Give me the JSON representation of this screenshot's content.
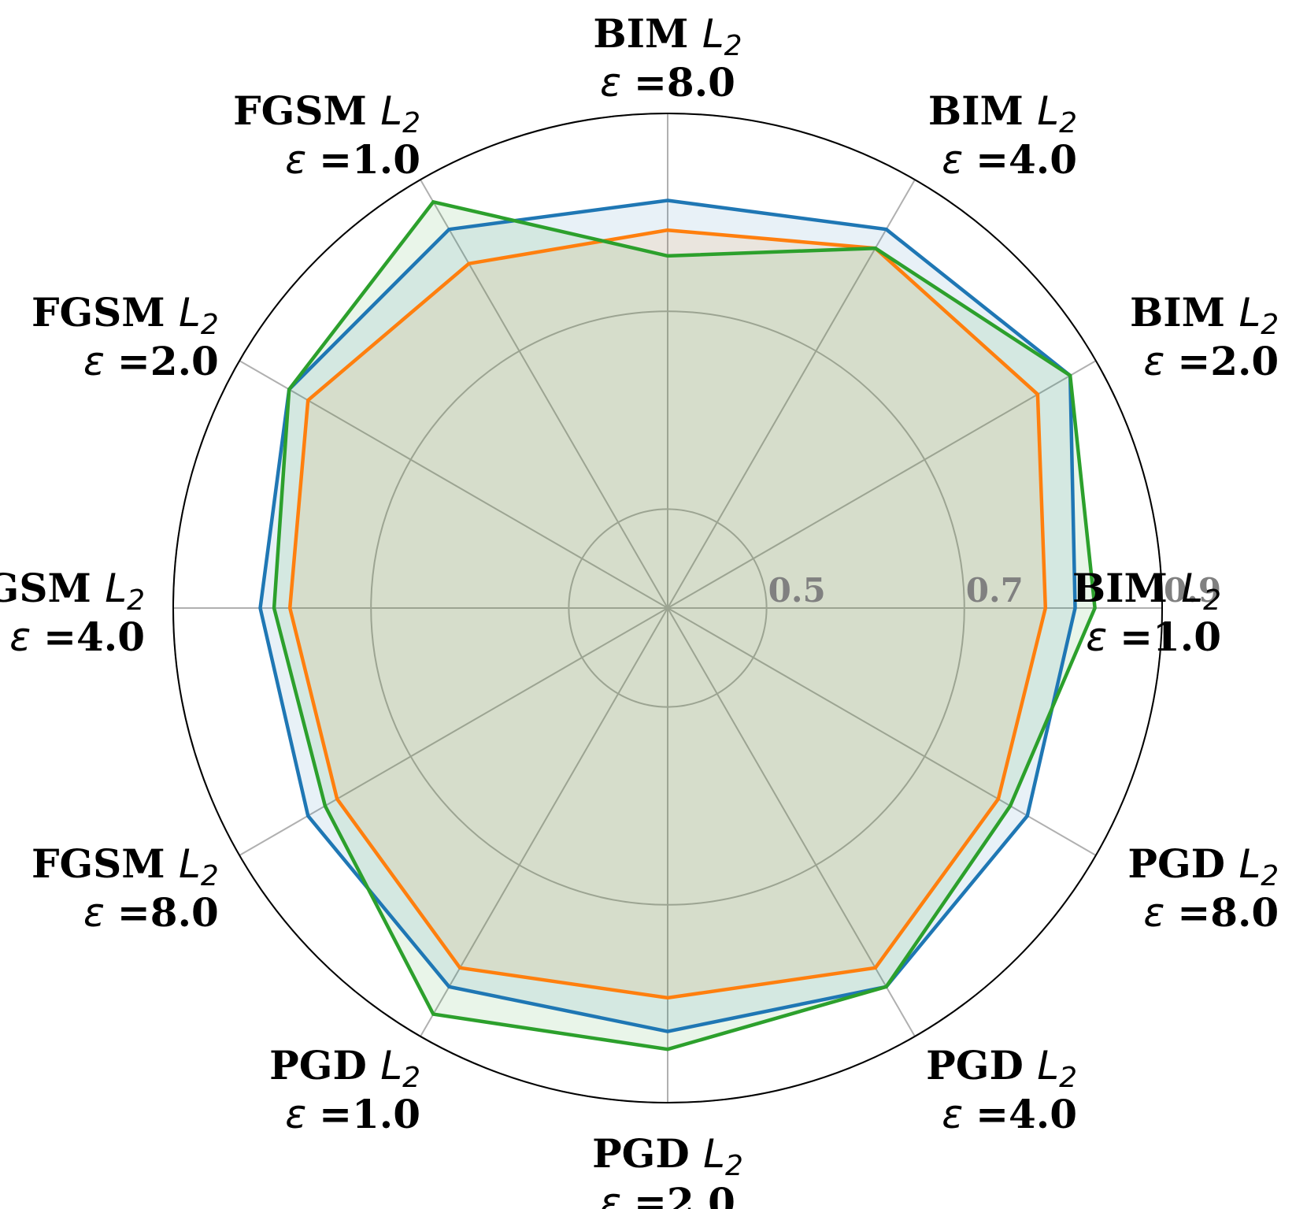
{
  "chart_data": {
    "type": "radar",
    "title": "",
    "axes": [
      {
        "method": "BIM",
        "norm": "L",
        "sub": "2",
        "eps": "8.0"
      },
      {
        "method": "BIM",
        "norm": "L",
        "sub": "2",
        "eps": "4.0"
      },
      {
        "method": "BIM",
        "norm": "L",
        "sub": "2",
        "eps": "2.0"
      },
      {
        "method": "BIM",
        "norm": "L",
        "sub": "2",
        "eps": "1.0"
      },
      {
        "method": "PGD",
        "norm": "L",
        "sub": "2",
        "eps": "8.0"
      },
      {
        "method": "PGD",
        "norm": "L",
        "sub": "2",
        "eps": "4.0"
      },
      {
        "method": "PGD",
        "norm": "L",
        "sub": "2",
        "eps": "2.0"
      },
      {
        "method": "PGD",
        "norm": "L",
        "sub": "2",
        "eps": "1.0"
      },
      {
        "method": "FGSM",
        "norm": "L",
        "sub": "2",
        "eps": "8.0"
      },
      {
        "method": "FGSM",
        "norm": "L",
        "sub": "2",
        "eps": "4.0"
      },
      {
        "method": "FGSM",
        "norm": "L",
        "sub": "2",
        "eps": "2.0"
      },
      {
        "method": "FGSM",
        "norm": "L",
        "sub": "2",
        "eps": "1.0"
      }
    ],
    "eps_prefix": "ε =",
    "r_range": [
      0.4,
      0.9
    ],
    "r_ticks": [
      "0.5",
      "0.7",
      "0.9"
    ],
    "r_tick_values": [
      0.5,
      0.7,
      0.9
    ],
    "grid": true,
    "series": [
      {
        "color": "#1f77b4",
        "fill_opacity": 0.1,
        "values": [
          0.812,
          0.842,
          0.87,
          0.812,
          0.82,
          0.842,
          0.828,
          0.842,
          0.82,
          0.812,
          0.842,
          0.842
        ]
      },
      {
        "color": "#ff7f0e",
        "fill_opacity": 0.1,
        "values": [
          0.782,
          0.82,
          0.832,
          0.782,
          0.786,
          0.82,
          0.794,
          0.82,
          0.786,
          0.782,
          0.82,
          0.802
        ]
      },
      {
        "color": "#2ca02c",
        "fill_opacity": 0.1,
        "values": [
          0.756,
          0.82,
          0.87,
          0.832,
          0.8,
          0.842,
          0.846,
          0.874,
          0.8,
          0.798,
          0.842,
          0.874
        ]
      }
    ]
  }
}
